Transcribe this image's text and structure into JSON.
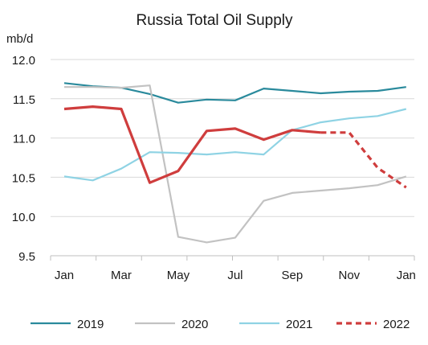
{
  "chart_data": {
    "type": "line",
    "title": "Russia Total Oil Supply",
    "ylabel": "mb/d",
    "xlabel": "",
    "ylim": [
      9.5,
      12.0
    ],
    "yticks": [
      "12.0",
      "11.5",
      "11.0",
      "10.5",
      "10.0",
      "9.5"
    ],
    "ytick_values": [
      12.0,
      11.5,
      11.0,
      10.5,
      10.0,
      9.5
    ],
    "months": [
      "Jan",
      "Feb",
      "Mar",
      "Apr",
      "May",
      "Jun",
      "Jul",
      "Aug",
      "Sep",
      "Oct",
      "Nov",
      "Dec",
      "Jan"
    ],
    "xticks": [
      "Jan",
      "Mar",
      "May",
      "Jul",
      "Sep",
      "Nov",
      "Jan"
    ],
    "grid": "horizontal",
    "legend_position": "bottom",
    "series": [
      {
        "name": "2019",
        "color": "#2a8a9c",
        "dash": false,
        "values": [
          11.7,
          11.66,
          11.64,
          11.56,
          11.45,
          11.49,
          11.48,
          11.63,
          11.6,
          11.57,
          11.59,
          11.6,
          11.65
        ]
      },
      {
        "name": "2020",
        "color": "#c2c2c2",
        "dash": false,
        "values": [
          11.65,
          11.65,
          11.64,
          11.67,
          9.74,
          9.67,
          9.73,
          10.2,
          10.3,
          10.33,
          10.36,
          10.4,
          10.51
        ]
      },
      {
        "name": "2021",
        "color": "#8fd3e4",
        "dash": false,
        "values": [
          10.51,
          10.46,
          10.61,
          10.82,
          10.81,
          10.79,
          10.82,
          10.79,
          11.1,
          11.2,
          11.25,
          11.28,
          11.37
        ]
      },
      {
        "name": "2022",
        "color": "#cf3d3d",
        "dash": false,
        "values": [
          11.37,
          11.4,
          11.37,
          10.43,
          10.58,
          11.09,
          11.12,
          10.98,
          11.1,
          11.07,
          null,
          null,
          null
        ]
      },
      {
        "name": "2022",
        "color": "#cf3d3d",
        "dash": true,
        "legend": false,
        "values": [
          null,
          null,
          null,
          null,
          null,
          null,
          null,
          null,
          null,
          11.07,
          11.07,
          10.62,
          10.37
        ]
      }
    ]
  }
}
